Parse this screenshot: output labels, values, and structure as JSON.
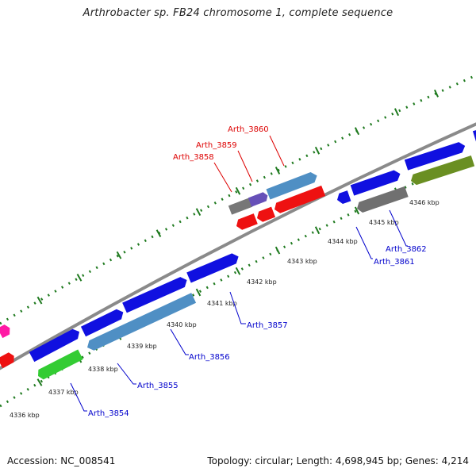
{
  "header": {
    "title": "Arthrobacter sp. FB24 chromosome 1, complete sequence"
  },
  "footer": {
    "accession": "Accession: NC_008541",
    "topology": "Topology: circular; Length: 4,698,945 bp; Genes: 4,214"
  },
  "colors": {
    "backbone": "#8a8a8a",
    "tick": "#1f7a1f",
    "forward_label": "#dd0000",
    "reverse_label": "#0000cc"
  },
  "kbp_labels": [
    {
      "text": "4336 kbp"
    },
    {
      "text": "4337 kbp"
    },
    {
      "text": "4338 kbp"
    },
    {
      "text": "4339 kbp"
    },
    {
      "text": "4340 kbp"
    },
    {
      "text": "4341 kbp"
    },
    {
      "text": "4342 kbp"
    },
    {
      "text": "4343 kbp"
    },
    {
      "text": "4344 kbp"
    },
    {
      "text": "4345 kbp"
    },
    {
      "text": "4346 kbp"
    }
  ],
  "gene_labels": [
    {
      "name": "Arth_3860",
      "strand": "forward"
    },
    {
      "name": "Arth_3859",
      "strand": "forward"
    },
    {
      "name": "Arth_3858",
      "strand": "forward"
    },
    {
      "name": "Arth_3857",
      "strand": "reverse"
    },
    {
      "name": "Arth_3856",
      "strand": "reverse"
    },
    {
      "name": "Arth_3855",
      "strand": "reverse"
    },
    {
      "name": "Arth_3854",
      "strand": "reverse"
    },
    {
      "name": "Arth_3862",
      "strand": "reverse"
    },
    {
      "name": "Arth_3861",
      "strand": "reverse"
    }
  ]
}
